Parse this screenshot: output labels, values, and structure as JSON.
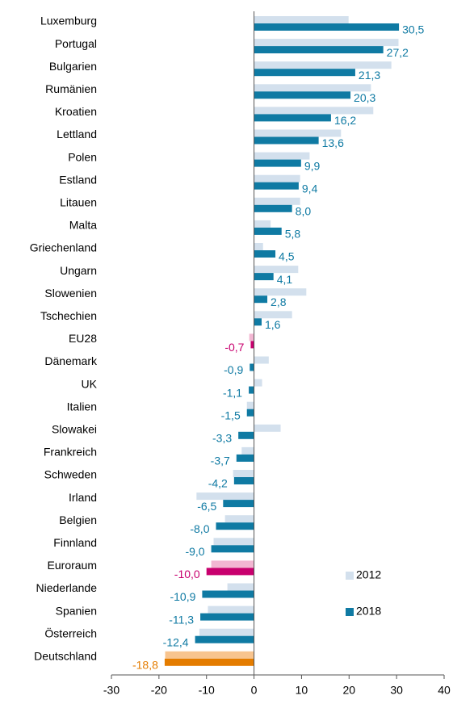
{
  "chart_data": {
    "type": "hbar",
    "categories": [
      "Luxemburg",
      "Portugal",
      "Bulgarien",
      "Rumänien",
      "Kroatien",
      "Lettland",
      "Polen",
      "Estland",
      "Litauen",
      "Malta",
      "Griechenland",
      "Ungarn",
      "Slowenien",
      "Tschechien",
      "EU28",
      "Dänemark",
      "UK",
      "Italien",
      "Slowakei",
      "Frankreich",
      "Schweden",
      "Irland",
      "Belgien",
      "Finnland",
      "Euroraum",
      "Niederlande",
      "Spanien",
      "Österreich",
      "Deutschland"
    ],
    "series": [
      {
        "name": "2012",
        "color": "#d3e0ed",
        "colors": [
          "#d3e0ed",
          "#d3e0ed",
          "#d3e0ed",
          "#d3e0ed",
          "#d3e0ed",
          "#d3e0ed",
          "#d3e0ed",
          "#d3e0ed",
          "#d3e0ed",
          "#d3e0ed",
          "#d3e0ed",
          "#d3e0ed",
          "#d3e0ed",
          "#d3e0ed",
          "#f2b6d2",
          "#d3e0ed",
          "#d3e0ed",
          "#d3e0ed",
          "#d3e0ed",
          "#d3e0ed",
          "#d3e0ed",
          "#d3e0ed",
          "#d3e0ed",
          "#d3e0ed",
          "#f2b6d2",
          "#d3e0ed",
          "#d3e0ed",
          "#d3e0ed",
          "#f8c48e"
        ],
        "values": [
          19.9,
          30.4,
          28.9,
          24.6,
          25.1,
          18.3,
          11.7,
          9.7,
          9.7,
          3.5,
          1.9,
          9.3,
          11.0,
          8.0,
          -1.0,
          3.1,
          1.7,
          -1.5,
          5.6,
          -2.6,
          -4.4,
          -12.1,
          -6.1,
          -8.5,
          -9.0,
          -5.6,
          -9.7,
          -11.5,
          -18.7
        ]
      },
      {
        "name": "2018",
        "color": "#0f7aa3",
        "colors": [
          "#0f7aa3",
          "#0f7aa3",
          "#0f7aa3",
          "#0f7aa3",
          "#0f7aa3",
          "#0f7aa3",
          "#0f7aa3",
          "#0f7aa3",
          "#0f7aa3",
          "#0f7aa3",
          "#0f7aa3",
          "#0f7aa3",
          "#0f7aa3",
          "#0f7aa3",
          "#c8006e",
          "#0f7aa3",
          "#0f7aa3",
          "#0f7aa3",
          "#0f7aa3",
          "#0f7aa3",
          "#0f7aa3",
          "#0f7aa3",
          "#0f7aa3",
          "#0f7aa3",
          "#c8006e",
          "#0f7aa3",
          "#0f7aa3",
          "#0f7aa3",
          "#e47c00"
        ],
        "values": [
          30.5,
          27.2,
          21.3,
          20.3,
          16.2,
          13.6,
          9.9,
          9.4,
          8.0,
          5.8,
          4.5,
          4.1,
          2.8,
          1.6,
          -0.7,
          -0.9,
          -1.1,
          -1.5,
          -3.3,
          -3.7,
          -4.2,
          -6.5,
          -8.0,
          -9.0,
          -10.0,
          -10.9,
          -11.3,
          -12.4,
          -18.8
        ],
        "value_labels": [
          "30,5",
          "27,2",
          "21,3",
          "20,3",
          "16,2",
          "13,6",
          "9,9",
          "9,4",
          "8,0",
          "5,8",
          "4,5",
          "4,1",
          "2,8",
          "1,6",
          "-0,7",
          "-0,9",
          "-1,1",
          "-1,5",
          "-3,3",
          "-3,7",
          "-4,2",
          "-6,5",
          "-8,0",
          "-9,0",
          "-10,0",
          "-10,9",
          "-11,3",
          "-12,4",
          "-18,8"
        ]
      }
    ],
    "xlim": [
      -30,
      40
    ],
    "xticks": [
      -30,
      -20,
      -10,
      0,
      10,
      20,
      30,
      40
    ]
  }
}
